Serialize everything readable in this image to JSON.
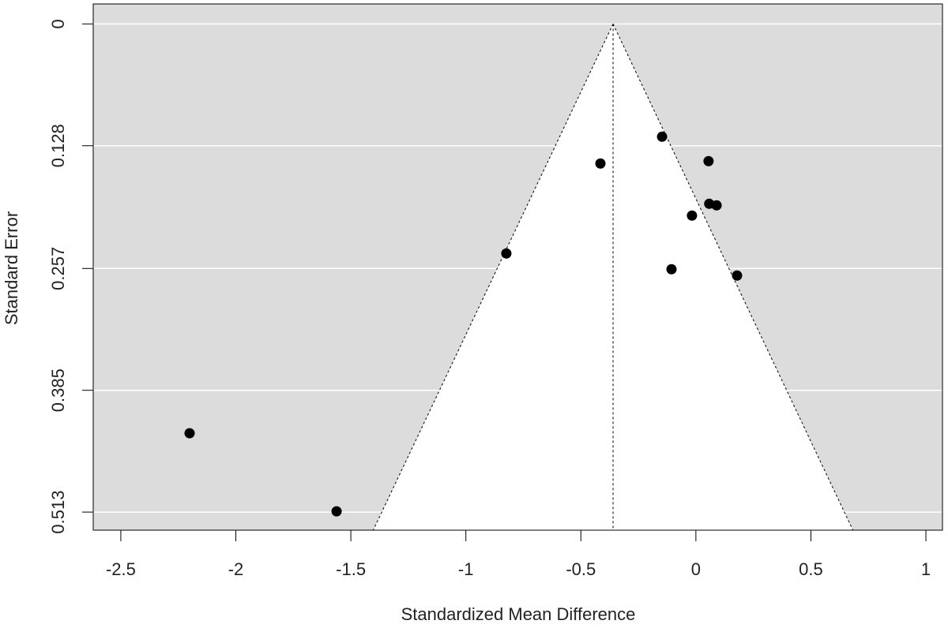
{
  "chart_data": {
    "type": "funnel",
    "x_label": "Standardized Mean Difference",
    "y_label": "Standard Error",
    "xlim": [
      -2.62,
      1.072
    ],
    "ylim": [
      -0.021,
      0.532
    ],
    "y_reversed": true,
    "xticks": [
      -2.5,
      -2,
      -1.5,
      -1,
      -0.5,
      0,
      0.5,
      1
    ],
    "yticks": [
      0,
      0.128,
      0.257,
      0.385,
      0.513
    ],
    "grid": true,
    "background_color": "#dcdcdc",
    "funnel_color": "#ffffff",
    "summary_estimate": -0.36,
    "ci_multiplier": 1.96,
    "point_color": "#000000",
    "x": [
      -0.147,
      -0.415,
      0.055,
      -0.017,
      0.058,
      0.09,
      -0.824,
      -0.106,
      0.179,
      -2.201,
      -1.562
    ],
    "values": [
      0.1185,
      0.1467,
      0.1442,
      0.2014,
      0.189,
      0.1906,
      0.2412,
      0.2578,
      0.2644,
      0.4301,
      0.5122
    ]
  }
}
